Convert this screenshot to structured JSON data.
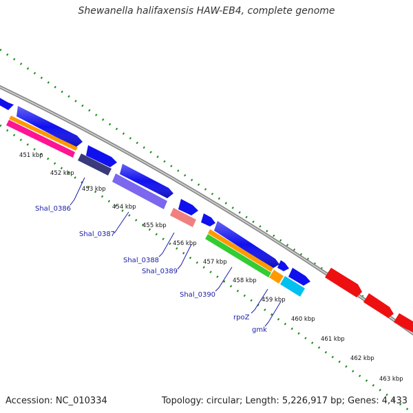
{
  "title": "Shewanella halifaxensis HAW-EB4, complete genome",
  "footer": {
    "accession": "Accession: NC_010334",
    "summary": "Topology: circular; Length: 5,226,917 bp; Genes: 4,433"
  },
  "colors": {
    "cds": "#1010ee",
    "backbone": "#8a8a8a",
    "ticks": "#1d8a1d",
    "red_feature": "#ee1010",
    "orange": "#ff9900",
    "pink": "#ff1493",
    "green": "#33cc33",
    "navy": "#3a3a7a",
    "purple": "#7b68ee",
    "salmon": "#f08080",
    "cyan": "#00c0f0",
    "label": "#1a1aa6"
  },
  "kbp_labels": [
    "451 kbp",
    "452 kbp",
    "453 kbp",
    "454 kbp",
    "455 kbp",
    "456 kbp",
    "457 kbp",
    "458 kbp",
    "459 kbp",
    "460 kbp",
    "461 kbp",
    "462 kbp",
    "463 kbp"
  ],
  "gene_labels": [
    "Shal_0386",
    "Shal_0387",
    "Shal_0388",
    "Shal_0389",
    "Shal_0390",
    "rpoZ",
    "gmk"
  ]
}
